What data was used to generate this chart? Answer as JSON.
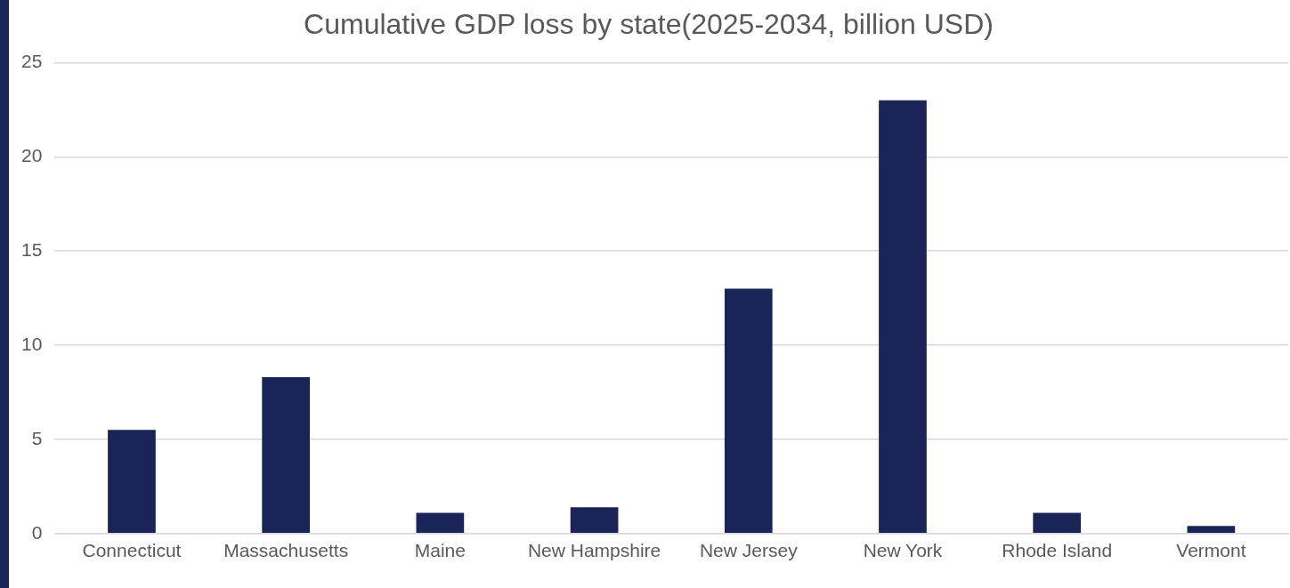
{
  "chart_data": {
    "type": "bar",
    "title": "Cumulative GDP loss by state(2025-2034, billion USD)",
    "categories": [
      "Connecticut",
      "Massachusetts",
      "Maine",
      "New Hampshire",
      "New Jersey",
      "New York",
      "Rhode Island",
      "Vermont"
    ],
    "values": [
      5.5,
      8.3,
      1.1,
      1.4,
      13,
      23,
      1.1,
      0.4
    ],
    "color": "#1b2457",
    "ylim": [
      0,
      25
    ],
    "yticks": [
      0,
      5,
      10,
      15,
      20,
      25
    ],
    "grid": "y",
    "legend": false
  }
}
